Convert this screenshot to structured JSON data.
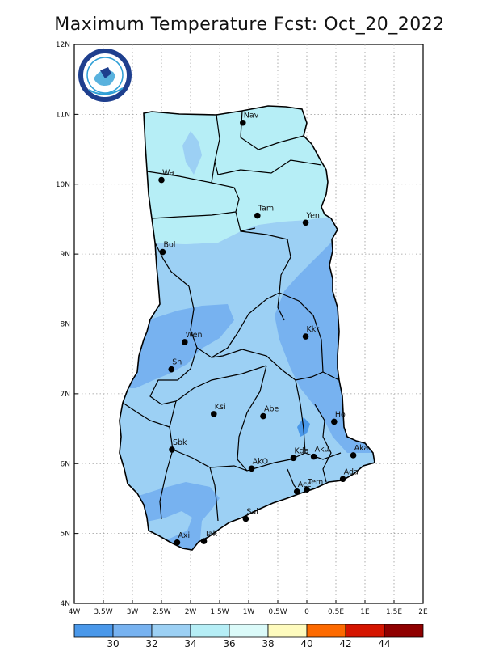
{
  "title": "Maximum Temperature Fcst: Oct_20_2022",
  "axes": {
    "lon_ticks": [
      {
        "value": -4,
        "label": "4W"
      },
      {
        "value": -3.5,
        "label": "3.5W"
      },
      {
        "value": -3,
        "label": "3W"
      },
      {
        "value": -2.5,
        "label": "2.5W"
      },
      {
        "value": -2,
        "label": "2W"
      },
      {
        "value": -1.5,
        "label": "1.5W"
      },
      {
        "value": -1,
        "label": "1W"
      },
      {
        "value": -0.5,
        "label": "0.5W"
      },
      {
        "value": 0,
        "label": "0"
      },
      {
        "value": 0.5,
        "label": "0.5E"
      },
      {
        "value": 1,
        "label": "1E"
      },
      {
        "value": 1.5,
        "label": "1.5E"
      },
      {
        "value": 2,
        "label": "2E"
      }
    ],
    "lat_ticks": [
      {
        "value": 4,
        "label": "4N"
      },
      {
        "value": 5,
        "label": "5N"
      },
      {
        "value": 6,
        "label": "6N"
      },
      {
        "value": 7,
        "label": "7N"
      },
      {
        "value": 8,
        "label": "8N"
      },
      {
        "value": 9,
        "label": "9N"
      },
      {
        "value": 10,
        "label": "10N"
      },
      {
        "value": 11,
        "label": "11N"
      },
      {
        "value": 12,
        "label": "12N"
      }
    ],
    "lon_range": [
      -4,
      2
    ],
    "lat_range": [
      4,
      12
    ],
    "grid": true
  },
  "cities": [
    {
      "name": "Nav",
      "lon": -1.1,
      "lat": 10.88
    },
    {
      "name": "Wa",
      "lon": -2.5,
      "lat": 10.06
    },
    {
      "name": "Tam",
      "lon": -0.85,
      "lat": 9.55
    },
    {
      "name": "Yen",
      "lon": -0.02,
      "lat": 9.45
    },
    {
      "name": "Bol",
      "lon": -2.48,
      "lat": 9.03
    },
    {
      "name": "Kkr",
      "lon": -0.02,
      "lat": 7.82
    },
    {
      "name": "Wen",
      "lon": -2.1,
      "lat": 7.74
    },
    {
      "name": "Sn",
      "lon": -2.33,
      "lat": 7.35
    },
    {
      "name": "Ksi",
      "lon": -1.6,
      "lat": 6.71
    },
    {
      "name": "Abe",
      "lon": -0.75,
      "lat": 6.68
    },
    {
      "name": "Ho",
      "lon": 0.47,
      "lat": 6.6
    },
    {
      "name": "Sbk",
      "lon": -2.32,
      "lat": 6.2
    },
    {
      "name": "Aka",
      "lon": 0.8,
      "lat": 6.12
    },
    {
      "name": "AkO",
      "lon": -0.95,
      "lat": 5.93
    },
    {
      "name": "Kda",
      "lon": -0.23,
      "lat": 6.08
    },
    {
      "name": "Aku",
      "lon": 0.12,
      "lat": 6.1
    },
    {
      "name": "Ada",
      "lon": 0.62,
      "lat": 5.78
    },
    {
      "name": "Acc",
      "lon": -0.17,
      "lat": 5.6
    },
    {
      "name": "Tem",
      "lon": 0.0,
      "lat": 5.63
    },
    {
      "name": "Sal",
      "lon": -1.05,
      "lat": 5.21
    },
    {
      "name": "Axi",
      "lon": -2.23,
      "lat": 4.87
    },
    {
      "name": "Tak",
      "lon": -1.77,
      "lat": 4.89
    }
  ],
  "fields": [
    {
      "level": "36-38",
      "color": "#d8f8f8",
      "shape": "whole"
    },
    {
      "level": "34-36",
      "color": "#b6eef6",
      "shape": "north-band"
    },
    {
      "level": "32-34",
      "color": "#9cd0f4",
      "shape": "south-bulk"
    },
    {
      "level": "30-32",
      "color": "#77b2f0",
      "shape": "patches"
    }
  ],
  "colorbar": {
    "colors": [
      "#4a98ea",
      "#77b2f0",
      "#9cd0f4",
      "#b6eef6",
      "#dbfaf9",
      "#fefbbe",
      "#fd6a00",
      "#d51500",
      "#8f0000"
    ],
    "labels": [
      "30",
      "32",
      "34",
      "36",
      "38",
      "40",
      "42",
      "44"
    ]
  },
  "logo": {
    "text": "GHANA METEOROLOGICAL AGENCY",
    "colors": {
      "ring": "#1e3f8e",
      "accent": "#2f9fd6"
    }
  }
}
